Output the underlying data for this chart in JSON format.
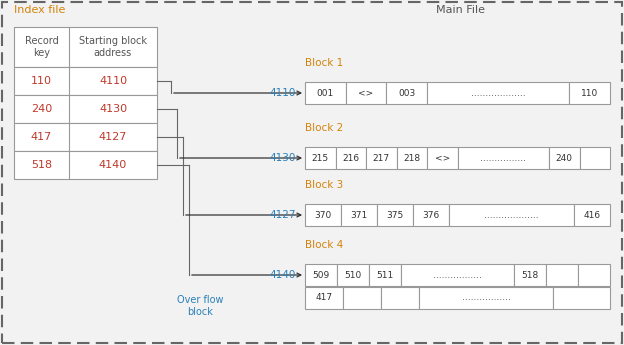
{
  "bg_color": "#f2f2f2",
  "border_color": "#666666",
  "index_file_label": "Index file",
  "main_file_label": "Main File",
  "index_header": [
    "Record\nkey",
    "Starting block\naddress"
  ],
  "index_rows": [
    [
      "110",
      "4110"
    ],
    [
      "240",
      "4130"
    ],
    [
      "417",
      "4127"
    ],
    [
      "518",
      "4140"
    ]
  ],
  "block_labels": [
    "Block 1",
    "Block 2",
    "Block 3",
    "Block 4"
  ],
  "block_addresses": [
    "4110",
    "4130",
    "4127",
    "4140"
  ],
  "block1_cells": [
    [
      "001",
      1
    ],
    [
      "<>",
      1
    ],
    [
      "003",
      1
    ],
    [
      "...................",
      3.5
    ],
    [
      "110",
      1
    ]
  ],
  "block2_cells": [
    [
      "215",
      1
    ],
    [
      "216",
      1
    ],
    [
      "217",
      1
    ],
    [
      "218",
      1
    ],
    [
      "<>",
      1
    ],
    [
      "................",
      3
    ],
    [
      "240",
      1
    ],
    [
      "",
      1
    ]
  ],
  "block3_cells": [
    [
      "370",
      1
    ],
    [
      "371",
      1
    ],
    [
      "375",
      1
    ],
    [
      "376",
      1
    ],
    [
      "...................",
      3.5
    ],
    [
      "416",
      1
    ]
  ],
  "block4_cells": [
    [
      "509",
      1
    ],
    [
      "510",
      1
    ],
    [
      "511",
      1
    ],
    [
      ".................",
      3.5
    ],
    [
      "518",
      1
    ],
    [
      "",
      1
    ],
    [
      "",
      1
    ]
  ],
  "overflow_cells": [
    [
      "417",
      1
    ],
    [
      "",
      1
    ],
    [
      "",
      1
    ],
    [
      ".................",
      3.5
    ],
    [
      "",
      1.5
    ]
  ],
  "overflow_label": "Over flow\nblock",
  "text_red": "#c0392b",
  "text_orange": "#d4830a",
  "text_blue": "#2980b9",
  "text_dark": "#555555",
  "cell_text": "#333333",
  "addr_color": "#2980b9"
}
